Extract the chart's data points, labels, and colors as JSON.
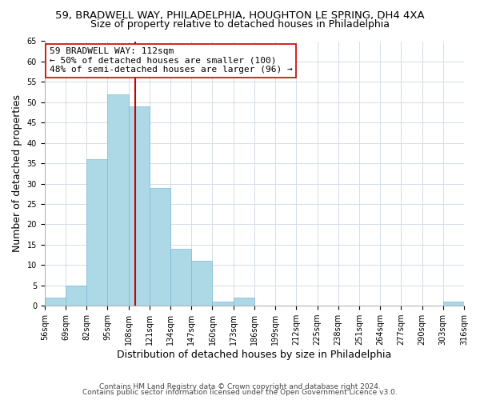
{
  "title_line1": "59, BRADWELL WAY, PHILADELPHIA, HOUGHTON LE SPRING, DH4 4XA",
  "title_line2": "Size of property relative to detached houses in Philadelphia",
  "xlabel": "Distribution of detached houses by size in Philadelphia",
  "ylabel": "Number of detached properties",
  "bar_color": "#add8e6",
  "bar_edgecolor": "#7cb9d8",
  "vline_x": 112,
  "vline_color": "#cc0000",
  "annotation_title": "59 BRADWELL WAY: 112sqm",
  "annotation_line1": "← 50% of detached houses are smaller (100)",
  "annotation_line2": "48% of semi-detached houses are larger (96) →",
  "annotation_box_edgecolor": "#cc0000",
  "bins_left": [
    56,
    69,
    82,
    95,
    108,
    121,
    134,
    147,
    160,
    173,
    186,
    199,
    212,
    225,
    238,
    251,
    264,
    277,
    290,
    303
  ],
  "bin_width": 13,
  "bar_heights": [
    2,
    5,
    36,
    52,
    49,
    29,
    14,
    11,
    1,
    2,
    0,
    0,
    0,
    0,
    0,
    0,
    0,
    0,
    0,
    1
  ],
  "ylim": [
    0,
    65
  ],
  "yticks": [
    0,
    5,
    10,
    15,
    20,
    25,
    30,
    35,
    40,
    45,
    50,
    55,
    60,
    65
  ],
  "xtick_labels": [
    "56sqm",
    "69sqm",
    "82sqm",
    "95sqm",
    "108sqm",
    "121sqm",
    "134sqm",
    "147sqm",
    "160sqm",
    "173sqm",
    "186sqm",
    "199sqm",
    "212sqm",
    "225sqm",
    "238sqm",
    "251sqm",
    "264sqm",
    "277sqm",
    "290sqm",
    "303sqm",
    "316sqm"
  ],
  "footer_line1": "Contains HM Land Registry data © Crown copyright and database right 2024.",
  "footer_line2": "Contains public sector information licensed under the Open Government Licence v3.0.",
  "background_color": "#ffffff",
  "grid_color": "#d4dde8",
  "title_fontsize": 9.5,
  "subtitle_fontsize": 9,
  "axis_label_fontsize": 9,
  "tick_fontsize": 7,
  "annotation_fontsize": 8,
  "footer_fontsize": 6.5
}
